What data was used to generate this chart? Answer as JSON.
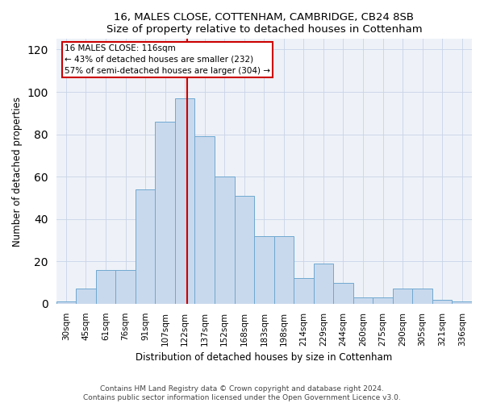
{
  "title1": "16, MALES CLOSE, COTTENHAM, CAMBRIDGE, CB24 8SB",
  "title2": "Size of property relative to detached houses in Cottenham",
  "xlabel": "Distribution of detached houses by size in Cottenham",
  "ylabel": "Number of detached properties",
  "bar_labels": [
    "30sqm",
    "45sqm",
    "61sqm",
    "76sqm",
    "91sqm",
    "107sqm",
    "122sqm",
    "137sqm",
    "152sqm",
    "168sqm",
    "183sqm",
    "198sqm",
    "214sqm",
    "229sqm",
    "244sqm",
    "260sqm",
    "275sqm",
    "290sqm",
    "305sqm",
    "321sqm",
    "336sqm"
  ],
  "bar_heights": [
    1,
    7,
    16,
    16,
    54,
    86,
    97,
    79,
    60,
    51,
    32,
    32,
    12,
    19,
    10,
    3,
    3,
    7,
    7,
    2,
    1
  ],
  "bar_color": "#c9d9ed",
  "bar_edgecolor": "#6fa8d0",
  "vline_color": "#cc0000",
  "annotation_line1": "16 MALES CLOSE: 116sqm",
  "annotation_line2": "← 43% of detached houses are smaller (232)",
  "annotation_line3": "57% of semi-detached houses are larger (304) →",
  "annotation_box_color": "#cc0000",
  "ylim": [
    0,
    125
  ],
  "yticks": [
    0,
    20,
    40,
    60,
    80,
    100,
    120
  ],
  "footer1": "Contains HM Land Registry data © Crown copyright and database right 2024.",
  "footer2": "Contains public sector information licensed under the Open Government Licence v3.0.",
  "figsize": [
    6.0,
    5.0
  ],
  "dpi": 100
}
